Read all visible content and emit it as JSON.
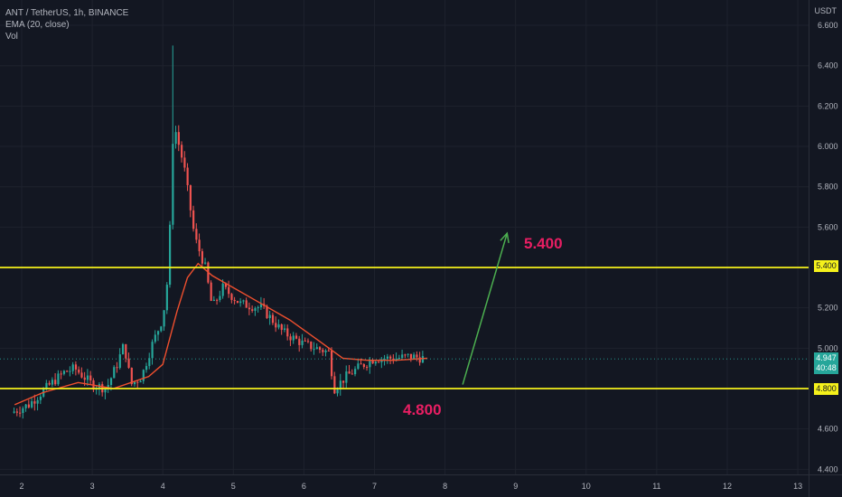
{
  "legend": {
    "symbol": "ANT / TetherUS, 1h, BINANCE",
    "ema": "EMA (20, close)",
    "volume": "Vol"
  },
  "currency": "USDT",
  "price_tags": {
    "upper_level": "5.400",
    "lower_level": "4.800",
    "last_price": "4.947",
    "countdown": "40:48"
  },
  "annotations": {
    "target": "5.400",
    "support": "4.800"
  },
  "colors": {
    "background": "#131722",
    "up": "#26a69a",
    "down": "#ef5350",
    "ema": "#ef4f2e",
    "level": "#f5f11b",
    "arrow": "#4caf50",
    "annotation": "#e91e63"
  },
  "chart_data": {
    "type": "candlestick",
    "symbol": "ANT / TetherUS",
    "interval": "1h",
    "exchange": "BINANCE",
    "y_ticks": [
      "4.400",
      "4.600",
      "4.800",
      "5.000",
      "5.200",
      "5.400",
      "5.600",
      "5.800",
      "6.000",
      "6.200",
      "6.400",
      "6.600"
    ],
    "x_ticks": [
      "2",
      "3",
      "4",
      "5",
      "6",
      "7",
      "8",
      "9",
      "10",
      "11",
      "12",
      "13"
    ],
    "ylim": [
      4.4,
      6.6
    ],
    "horizontal_levels": [
      5.4,
      4.8
    ],
    "last_price": 4.947,
    "price_path": [
      [
        1.85,
        4.68
      ],
      [
        2.1,
        4.72
      ],
      [
        2.4,
        4.82
      ],
      [
        2.6,
        4.88
      ],
      [
        2.75,
        4.9
      ],
      [
        3.0,
        4.82
      ],
      [
        3.2,
        4.8
      ],
      [
        3.35,
        4.92
      ],
      [
        3.45,
        5.02
      ],
      [
        3.55,
        4.82
      ],
      [
        3.7,
        4.86
      ],
      [
        3.85,
        5.02
      ],
      [
        4.0,
        5.15
      ],
      [
        4.08,
        5.38
      ],
      [
        4.15,
        6.12
      ],
      [
        4.3,
        5.9
      ],
      [
        4.45,
        5.55
      ],
      [
        4.6,
        5.4
      ],
      [
        4.7,
        5.2
      ],
      [
        4.85,
        5.3
      ],
      [
        5.1,
        5.22
      ],
      [
        5.4,
        5.2
      ],
      [
        5.7,
        5.08
      ],
      [
        6.0,
        5.02
      ],
      [
        6.35,
        4.98
      ],
      [
        6.43,
        4.8
      ],
      [
        6.6,
        4.86
      ],
      [
        6.8,
        4.91
      ],
      [
        7.0,
        4.95
      ],
      [
        7.3,
        4.95
      ],
      [
        7.5,
        4.96
      ],
      [
        7.7,
        4.95
      ]
    ],
    "spike_high": 6.5,
    "ema_series": [
      [
        1.9,
        4.72
      ],
      [
        2.3,
        4.78
      ],
      [
        2.8,
        4.83
      ],
      [
        3.3,
        4.8
      ],
      [
        3.8,
        4.86
      ],
      [
        4.0,
        4.92
      ],
      [
        4.2,
        5.18
      ],
      [
        4.35,
        5.35
      ],
      [
        4.5,
        5.42
      ],
      [
        4.7,
        5.36
      ],
      [
        5.0,
        5.3
      ],
      [
        5.4,
        5.22
      ],
      [
        5.8,
        5.14
      ],
      [
        6.2,
        5.04
      ],
      [
        6.55,
        4.95
      ],
      [
        6.9,
        4.94
      ],
      [
        7.3,
        4.94
      ],
      [
        7.75,
        4.95
      ]
    ],
    "projection": {
      "from": [
        8.25,
        4.82
      ],
      "to": [
        8.88,
        5.57
      ]
    }
  }
}
